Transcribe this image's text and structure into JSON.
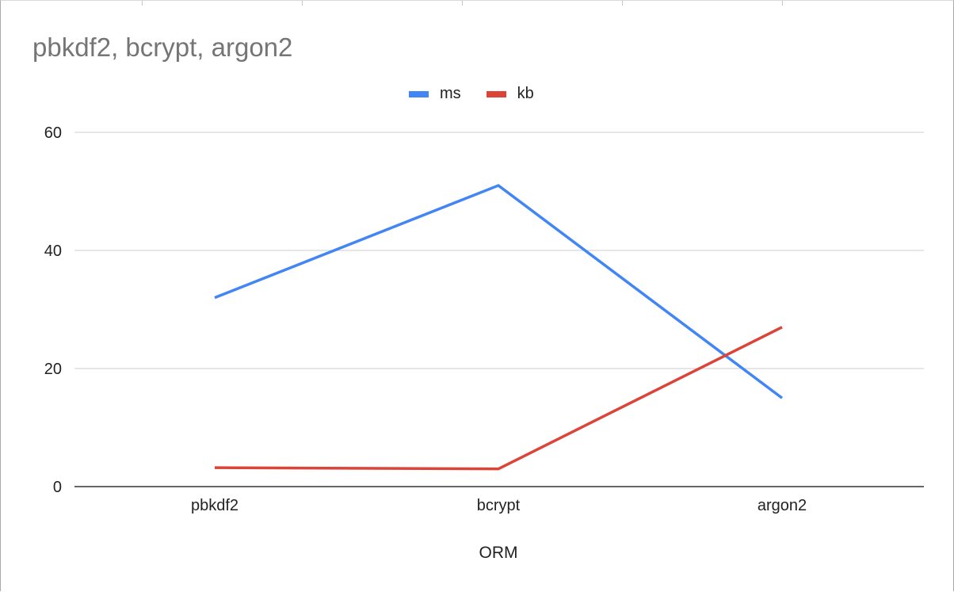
{
  "chart_data": {
    "type": "line",
    "title": "pbkdf2, bcrypt, argon2",
    "xlabel": "ORM",
    "ylabel": "",
    "categories": [
      "pbkdf2",
      "bcrypt",
      "argon2"
    ],
    "series": [
      {
        "name": "ms",
        "values": [
          32,
          51,
          15
        ],
        "color": "#4285f4"
      },
      {
        "name": "kb",
        "values": [
          3.2,
          3.0,
          27
        ],
        "color": "#db4437"
      }
    ],
    "ylim": [
      0,
      60
    ],
    "yticks": [
      "0",
      "20",
      "40",
      "60"
    ],
    "grid": true,
    "legend_position": "top-center"
  }
}
